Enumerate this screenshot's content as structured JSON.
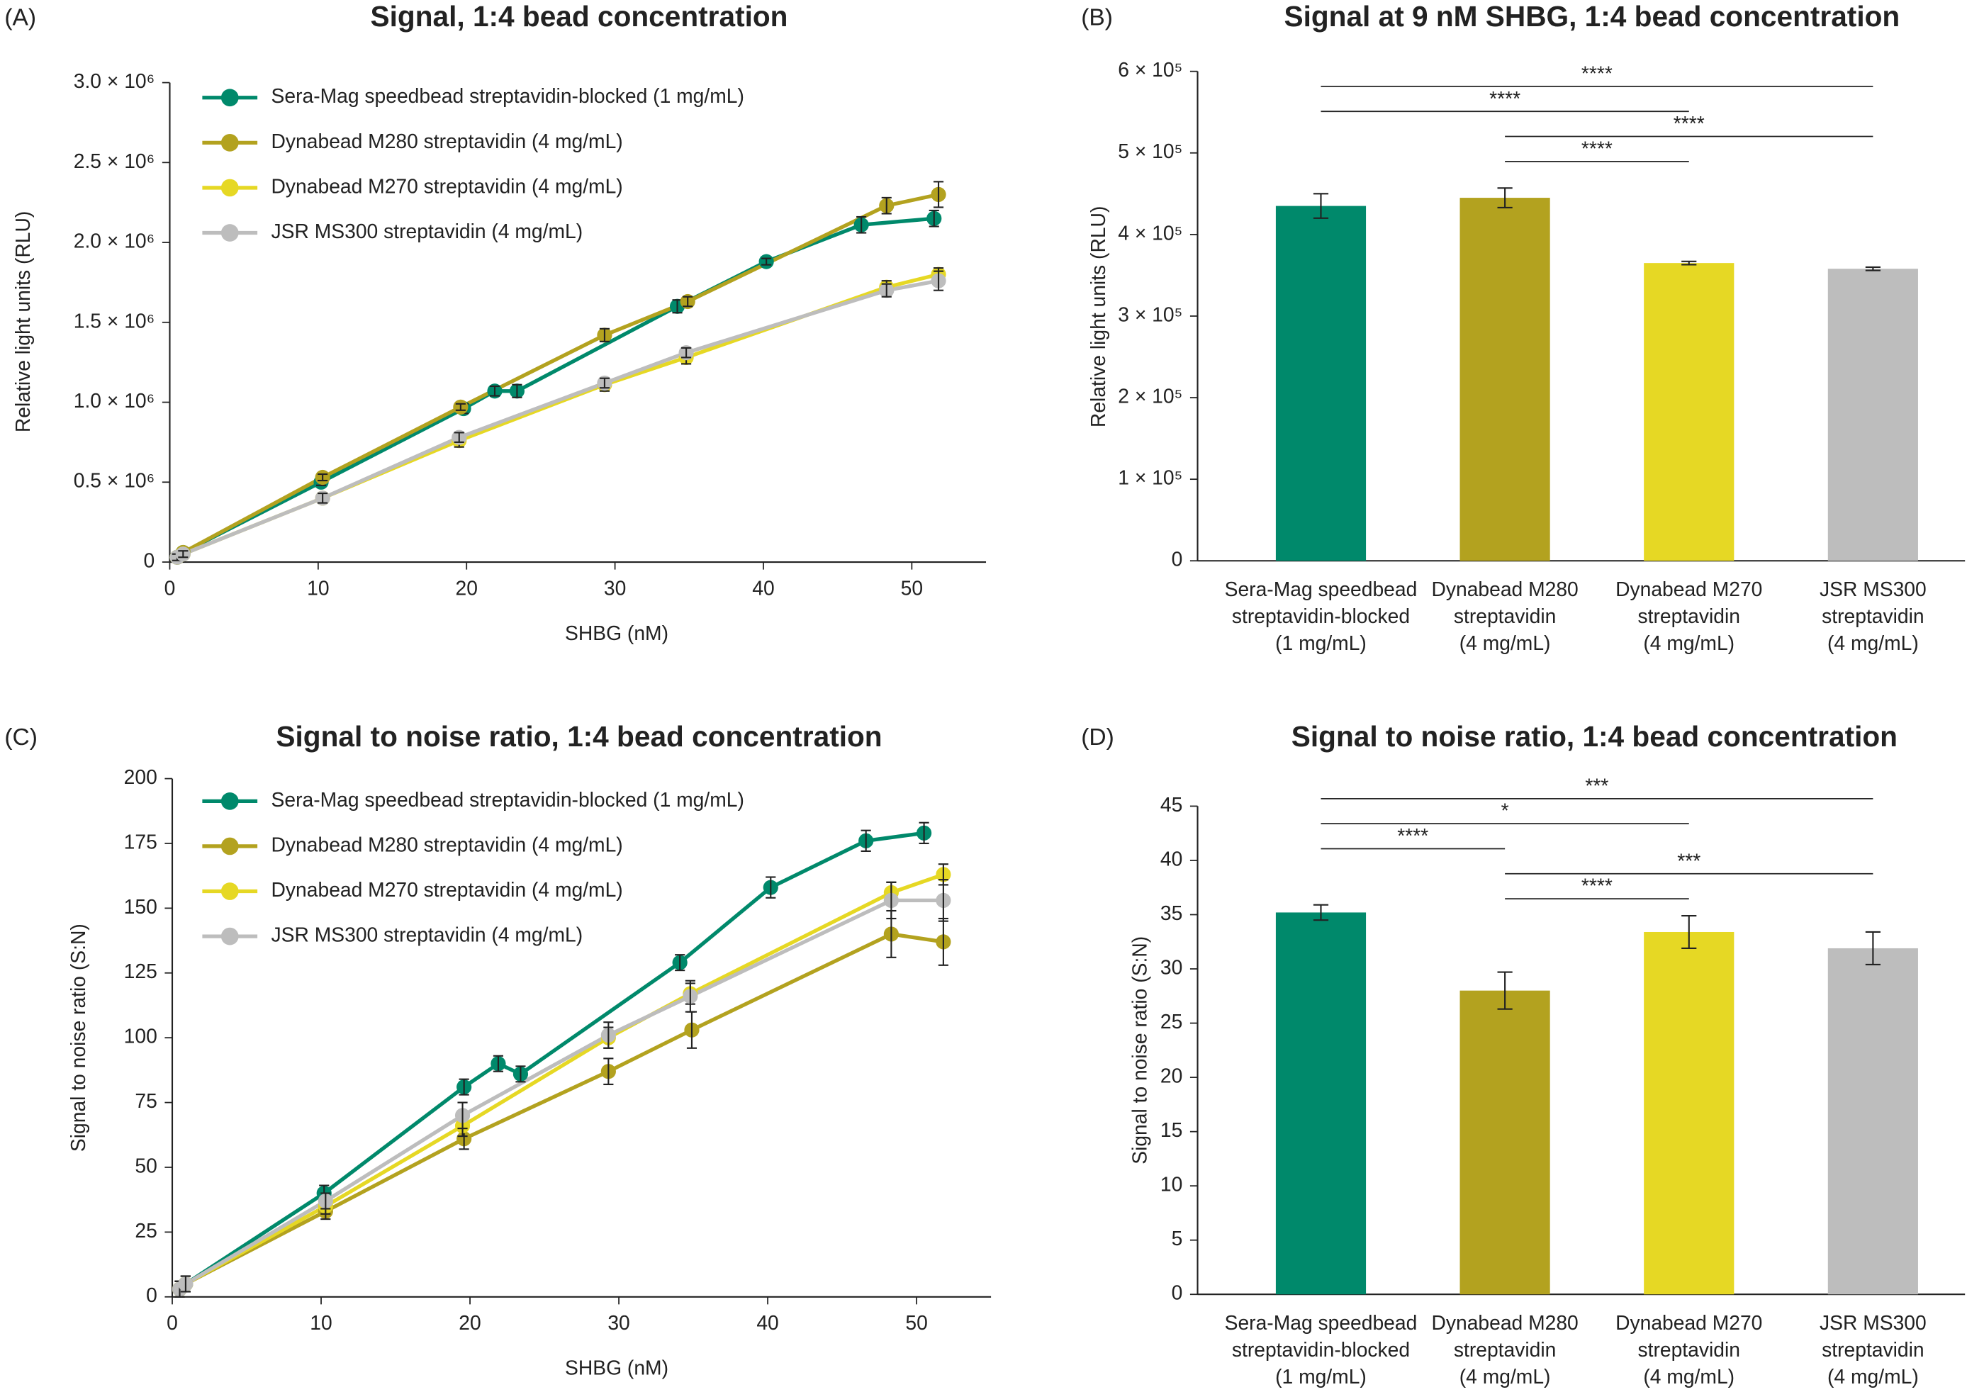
{
  "chart_data": [
    {
      "type": "line",
      "panel_label": "(A)",
      "title": "Signal, 1:4 bead concentration",
      "x_label": "SHBG (nM)",
      "y_label": "Relative light units (RLU)",
      "xlim": [
        0,
        55
      ],
      "xticks": [
        0,
        10,
        20,
        30,
        40,
        50
      ],
      "ylim": [
        0,
        3000000
      ],
      "yticks": [
        0,
        {
          "value": 500000,
          "label": "0.5 × 10⁶"
        },
        {
          "value": 1000000,
          "label": "1.0 × 10⁶"
        },
        {
          "value": 1500000,
          "label": "1.5 × 10⁶"
        },
        {
          "value": 2000000,
          "label": "2.0 × 10⁶"
        },
        {
          "value": 2500000,
          "label": "2.5 × 10⁶"
        },
        {
          "value": 3000000,
          "label": "3.0 × 10⁶"
        }
      ],
      "grid": false,
      "legend": "upper left",
      "series": [
        {
          "name": "Sera-Mag speedbead streptavidin-blocked (1 mg/mL)",
          "color": "#00896b",
          "x": [
            0.5,
            0.9,
            10.2,
            19.8,
            21.9,
            23.4,
            34.2,
            40.2,
            46.6,
            51.5
          ],
          "values": [
            30000,
            60000,
            500000,
            960000,
            1070000,
            1070000,
            1600000,
            1880000,
            2110000,
            2150000
          ],
          "errors": [
            20000,
            20000,
            20000,
            30000,
            30000,
            40000,
            40000,
            20000,
            50000,
            50000
          ]
        },
        {
          "name": "Dynabead M280 streptavidin (4 mg/mL)",
          "color": "#b3a21f",
          "x": [
            0.5,
            0.9,
            10.3,
            19.6,
            29.3,
            34.9,
            48.3,
            51.8
          ],
          "values": [
            30000,
            60000,
            530000,
            970000,
            1420000,
            1630000,
            2230000,
            2300000
          ],
          "errors": [
            20000,
            20000,
            20000,
            20000,
            40000,
            30000,
            50000,
            80000
          ]
        },
        {
          "name": "Dynabead M270 streptavidin (4 mg/mL)",
          "color": "#e6d824",
          "x": [
            0.5,
            0.9,
            10.3,
            19.5,
            29.3,
            34.8,
            48.3,
            51.8
          ],
          "values": [
            30000,
            50000,
            400000,
            760000,
            1110000,
            1280000,
            1720000,
            1800000
          ],
          "errors": [
            20000,
            20000,
            30000,
            40000,
            40000,
            40000,
            40000,
            40000
          ]
        },
        {
          "name": "JSR MS300 streptavidin (4 mg/mL)",
          "color": "#bdbdbd",
          "x": [
            0.5,
            0.9,
            10.3,
            19.5,
            29.3,
            34.8,
            48.3,
            51.8
          ],
          "values": [
            30000,
            50000,
            400000,
            780000,
            1120000,
            1310000,
            1700000,
            1760000
          ],
          "errors": [
            20000,
            20000,
            30000,
            30000,
            30000,
            30000,
            40000,
            60000
          ]
        }
      ]
    },
    {
      "type": "bar",
      "panel_label": "(B)",
      "title": "Signal at 9 nM SHBG, 1:4 bead concentration",
      "y_label": "Relative light units (RLU)",
      "categories": [
        [
          "Sera-Mag speedbead",
          "streptavidin-blocked",
          "(1 mg/mL)"
        ],
        [
          "Dynabead M280",
          "streptavidin",
          "(4 mg/mL)"
        ],
        [
          "Dynabead M270",
          "streptavidin",
          "(4 mg/mL)"
        ],
        [
          "JSR MS300",
          "streptavidin",
          "(4 mg/mL)"
        ]
      ],
      "values": [
        435000,
        445000,
        365000,
        358000
      ],
      "errors": [
        15000,
        12000,
        2000,
        2000
      ],
      "colors": [
        "#00896b",
        "#b3a21f",
        "#e6d824",
        "#bdbdbd"
      ],
      "ylim": [
        0,
        600000
      ],
      "yticks": [
        0,
        {
          "value": 100000,
          "label": "1 × 10⁵"
        },
        {
          "value": 200000,
          "label": "2 × 10⁵"
        },
        {
          "value": 300000,
          "label": "3 × 10⁵"
        },
        {
          "value": 400000,
          "label": "4 × 10⁵"
        },
        {
          "value": 500000,
          "label": "5 × 10⁵"
        },
        {
          "value": 600000,
          "label": "6 × 10⁵"
        }
      ],
      "grid": false,
      "comparisons": [
        {
          "groups": [
            0,
            3
          ],
          "label": "****"
        },
        {
          "groups": [
            0,
            2
          ],
          "label": "****"
        },
        {
          "groups": [
            1,
            3
          ],
          "label": "****"
        },
        {
          "groups": [
            1,
            2
          ],
          "label": "****"
        }
      ]
    },
    {
      "type": "line",
      "panel_label": "(C)",
      "title": "Signal to noise ratio, 1:4 bead concentration",
      "x_label": "SHBG (nM)",
      "y_label": "Signal to noise ratio (S:N)",
      "xlim": [
        0,
        55
      ],
      "xticks": [
        0,
        10,
        20,
        30,
        40,
        50
      ],
      "ylim": [
        0,
        200
      ],
      "yticks": [
        0,
        25,
        50,
        75,
        100,
        125,
        150,
        175,
        200
      ],
      "grid": false,
      "legend": "upper left",
      "series": [
        {
          "name": "Sera-Mag speedbead streptavidin-blocked (1 mg/mL)",
          "color": "#00896b",
          "x": [
            0.5,
            0.9,
            10.2,
            19.6,
            21.9,
            23.4,
            34.1,
            40.2,
            46.6,
            50.5
          ],
          "values": [
            3,
            5,
            40,
            81,
            90,
            86,
            129,
            158,
            176,
            179
          ],
          "errors": [
            3,
            3,
            3,
            3,
            3,
            3,
            3,
            4,
            4,
            4
          ]
        },
        {
          "name": "Dynabead M280 streptavidin (4 mg/mL)",
          "color": "#b3a21f",
          "x": [
            0.5,
            0.9,
            10.3,
            19.6,
            29.3,
            34.9,
            48.3,
            51.8
          ],
          "values": [
            3,
            5,
            33,
            61,
            87,
            103,
            140,
            137
          ],
          "errors": [
            3,
            3,
            3,
            4,
            5,
            7,
            9,
            9
          ]
        },
        {
          "name": "Dynabead M270 streptavidin (4 mg/mL)",
          "color": "#e6d824",
          "x": [
            0.5,
            0.9,
            10.3,
            19.5,
            29.3,
            34.8,
            48.3,
            51.8
          ],
          "values": [
            3,
            5,
            35,
            66,
            100,
            117,
            156,
            163
          ],
          "errors": [
            3,
            3,
            3,
            4,
            4,
            4,
            4,
            4
          ]
        },
        {
          "name": "JSR MS300 streptavidin (4 mg/mL)",
          "color": "#bdbdbd",
          "x": [
            0.5,
            0.9,
            10.3,
            19.5,
            29.3,
            34.8,
            48.3,
            51.8
          ],
          "values": [
            3,
            5,
            37,
            70,
            101,
            116,
            153,
            153
          ],
          "errors": [
            3,
            3,
            3,
            5,
            5,
            6,
            7,
            8
          ]
        }
      ]
    },
    {
      "type": "bar",
      "panel_label": "(D)",
      "title": "Signal to noise ratio, 1:4 bead concentration",
      "y_label": "Signal to noise ratio (S:N)",
      "categories": [
        [
          "Sera-Mag speedbead",
          "streptavidin-blocked",
          "(1 mg/mL)"
        ],
        [
          "Dynabead M280",
          "streptavidin",
          "(4 mg/mL)"
        ],
        [
          "Dynabead M270",
          "streptavidin",
          "(4 mg/mL)"
        ],
        [
          "JSR MS300",
          "streptavidin",
          "(4 mg/mL)"
        ]
      ],
      "values": [
        35.2,
        28.0,
        33.4,
        31.9
      ],
      "errors": [
        0.7,
        1.7,
        1.5,
        1.5
      ],
      "colors": [
        "#00896b",
        "#b3a21f",
        "#e6d824",
        "#bdbdbd"
      ],
      "ylim": [
        0,
        45
      ],
      "yticks": [
        0,
        5,
        10,
        15,
        20,
        25,
        30,
        35,
        40,
        45
      ],
      "grid": false,
      "comparisons": [
        {
          "groups": [
            0,
            3
          ],
          "label": "***"
        },
        {
          "groups": [
            0,
            2
          ],
          "label": "*"
        },
        {
          "groups": [
            0,
            1
          ],
          "label": "****"
        },
        {
          "groups": [
            1,
            3
          ],
          "label": "***"
        },
        {
          "groups": [
            1,
            2
          ],
          "label": "****"
        }
      ]
    }
  ]
}
